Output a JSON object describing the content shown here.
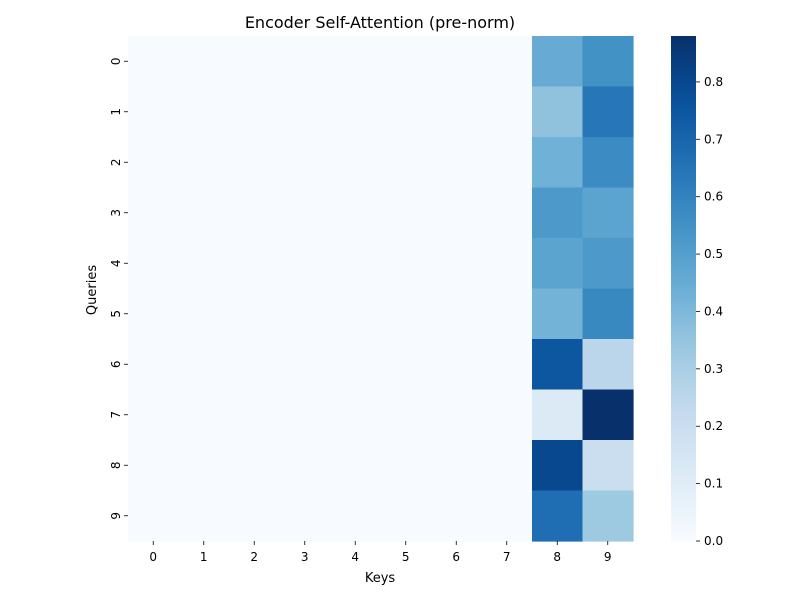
{
  "chart_data": {
    "type": "heatmap",
    "title": "Encoder Self-Attention (pre-norm)",
    "xlabel": "Keys",
    "ylabel": "Queries",
    "x_categories": [
      "0",
      "1",
      "2",
      "3",
      "4",
      "5",
      "6",
      "7",
      "8",
      "9"
    ],
    "y_categories": [
      "0",
      "1",
      "2",
      "3",
      "4",
      "5",
      "6",
      "7",
      "8",
      "9"
    ],
    "values": [
      [
        0,
        0,
        0,
        0,
        0,
        0,
        0,
        0,
        0.45,
        0.55
      ],
      [
        0,
        0,
        0,
        0,
        0,
        0,
        0,
        0,
        0.36,
        0.64
      ],
      [
        0,
        0,
        0,
        0,
        0,
        0,
        0,
        0,
        0.43,
        0.57
      ],
      [
        0,
        0,
        0,
        0,
        0,
        0,
        0,
        0,
        0.52,
        0.48
      ],
      [
        0,
        0,
        0,
        0,
        0,
        0,
        0,
        0,
        0.48,
        0.52
      ],
      [
        0,
        0,
        0,
        0,
        0,
        0,
        0,
        0,
        0.42,
        0.58
      ],
      [
        0,
        0,
        0,
        0,
        0,
        0,
        0,
        0,
        0.75,
        0.25
      ],
      [
        0,
        0,
        0,
        0,
        0,
        0,
        0,
        0,
        0.12,
        0.88
      ],
      [
        0,
        0,
        0,
        0,
        0,
        0,
        0,
        0,
        0.8,
        0.2
      ],
      [
        0,
        0,
        0,
        0,
        0,
        0,
        0,
        0,
        0.67,
        0.33
      ]
    ],
    "colormap": "Blues",
    "colorbar": {
      "range": [
        0,
        0.88
      ],
      "ticks": [
        0.0,
        0.1,
        0.2,
        0.3,
        0.4,
        0.5,
        0.6,
        0.7,
        0.8
      ],
      "tick_labels": [
        "0.0",
        "0.1",
        "0.2",
        "0.3",
        "0.4",
        "0.5",
        "0.6",
        "0.7",
        "0.8"
      ]
    },
    "grid": false
  }
}
